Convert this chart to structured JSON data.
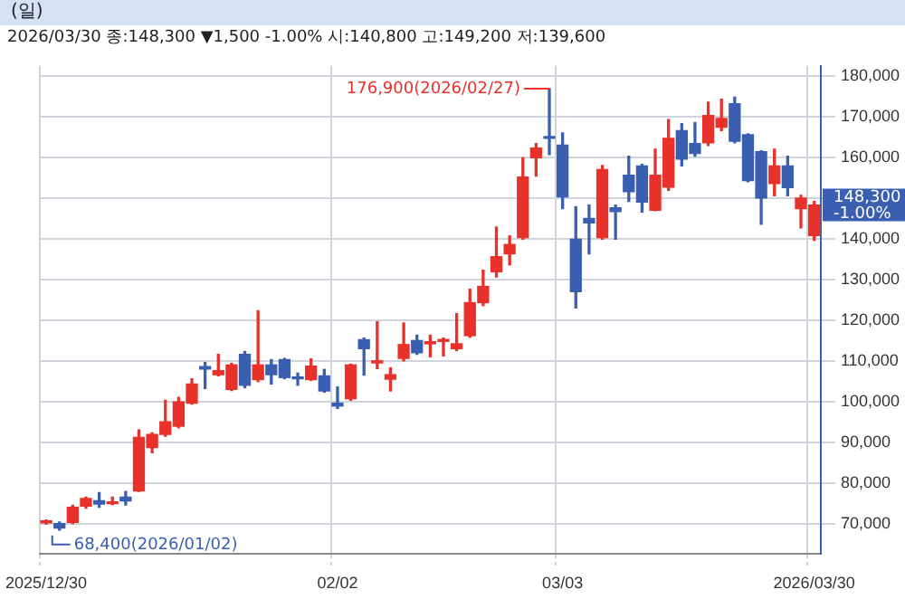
{
  "chart_data": {
    "type": "candlestick",
    "title": "(일)",
    "subtitle": "2026/03/30 종:148,300 ▼1,500 -1.00% 시:140,800 고:149,200 저:139,600",
    "categories": [
      "2025/12/30",
      null,
      null,
      null,
      null,
      null,
      null,
      null,
      null,
      null,
      null,
      null,
      null,
      null,
      null,
      null,
      null,
      null,
      null,
      null,
      null,
      null,
      "02/02",
      null,
      null,
      null,
      null,
      null,
      null,
      null,
      null,
      null,
      null,
      null,
      null,
      null,
      null,
      null,
      null,
      "03/03",
      null,
      null,
      null,
      null,
      null,
      null,
      null,
      null,
      null,
      null,
      null,
      null,
      null,
      null,
      null,
      null,
      null,
      null,
      "2026/03/30"
    ],
    "ohlc": [
      [
        70200,
        70900,
        69900,
        70500
      ],
      [
        70000,
        70400,
        68400,
        68900
      ],
      [
        70300,
        74500,
        70000,
        74000
      ],
      [
        74300,
        76500,
        73800,
        76200
      ],
      [
        75600,
        77600,
        74000,
        74800
      ],
      [
        74900,
        76500,
        74700,
        75300
      ],
      [
        76500,
        77900,
        74600,
        75600
      ],
      [
        78000,
        93000,
        77900,
        91200
      ],
      [
        88700,
        92300,
        87400,
        91900
      ],
      [
        91900,
        100300,
        91500,
        95000
      ],
      [
        93900,
        101000,
        93600,
        99900
      ],
      [
        99600,
        105600,
        99400,
        104300
      ],
      [
        108600,
        109600,
        103200,
        108000
      ],
      [
        106600,
        111600,
        106300,
        107600
      ],
      [
        103000,
        109400,
        102700,
        109000
      ],
      [
        111600,
        112300,
        103400,
        104000
      ],
      [
        105400,
        122300,
        104900,
        109000
      ],
      [
        109000,
        110300,
        104300,
        106600
      ],
      [
        110300,
        110600,
        105600,
        105900
      ],
      [
        105800,
        107000,
        104000,
        105600
      ],
      [
        105400,
        110500,
        105200,
        108700
      ],
      [
        106300,
        107900,
        102300,
        102600
      ],
      [
        99600,
        103600,
        98300,
        98900
      ],
      [
        100700,
        109200,
        100300,
        109000
      ],
      [
        115200,
        115600,
        106500,
        113000
      ],
      [
        109500,
        119600,
        108100,
        110000
      ],
      [
        105500,
        108300,
        102600,
        106600
      ],
      [
        110600,
        119300,
        110000,
        114000
      ],
      [
        115000,
        116300,
        111600,
        112000
      ],
      [
        114200,
        116300,
        111000,
        114700
      ],
      [
        114800,
        115600,
        111200,
        115200
      ],
      [
        113000,
        121600,
        112500,
        114200
      ],
      [
        116200,
        127600,
        115800,
        124300
      ],
      [
        124300,
        132300,
        123600,
        128300
      ],
      [
        131900,
        142900,
        130600,
        135600
      ],
      [
        136300,
        140700,
        133600,
        138600
      ],
      [
        140300,
        159900,
        139900,
        155200
      ],
      [
        159900,
        163400,
        155400,
        162300
      ],
      [
        165100,
        176900,
        160700,
        164700
      ],
      [
        163000,
        166000,
        147400,
        150300
      ],
      [
        139900,
        147900,
        123000,
        127000
      ],
      [
        145000,
        148300,
        136300,
        143900
      ],
      [
        140300,
        158000,
        139900,
        157000
      ],
      [
        147600,
        148300,
        139900,
        146700
      ],
      [
        155600,
        160300,
        149200,
        151600
      ],
      [
        157900,
        158300,
        146600,
        149000
      ],
      [
        147000,
        162000,
        146900,
        155600
      ],
      [
        152700,
        169300,
        151900,
        164700
      ],
      [
        166600,
        168300,
        157900,
        159600
      ],
      [
        163400,
        168600,
        160300,
        161000
      ],
      [
        163600,
        173600,
        162900,
        170300
      ],
      [
        167400,
        174300,
        166600,
        169600
      ],
      [
        173200,
        174800,
        163600,
        164000
      ],
      [
        165600,
        165800,
        154000,
        154300
      ],
      [
        161400,
        161600,
        143600,
        150000
      ],
      [
        153600,
        162000,
        150600,
        157900
      ],
      [
        157900,
        160300,
        150600,
        152600
      ],
      [
        147400,
        150700,
        142700,
        150000
      ],
      [
        140800,
        149200,
        139600,
        148300
      ]
    ],
    "colors": [
      "#e8312a",
      "#3a5fb0",
      "#e8312a",
      "#e8312a",
      "#3a5fb0",
      "#e8312a",
      "#3a5fb0",
      "#e8312a",
      "#e8312a",
      "#e8312a",
      "#e8312a",
      "#e8312a",
      "#3a5fb0",
      "#e8312a",
      "#e8312a",
      "#3a5fb0",
      "#e8312a",
      "#3a5fb0",
      "#3a5fb0",
      "#3a5fb0",
      "#e8312a",
      "#3a5fb0",
      "#3a5fb0",
      "#e8312a",
      "#3a5fb0",
      "#e8312a",
      "#e8312a",
      "#e8312a",
      "#3a5fb0",
      "#e8312a",
      "#e8312a",
      "#e8312a",
      "#e8312a",
      "#e8312a",
      "#e8312a",
      "#e8312a",
      "#e8312a",
      "#e8312a",
      "#3a5fb0",
      "#3a5fb0",
      "#3a5fb0",
      "#3a5fb0",
      "#e8312a",
      "#3a5fb0",
      "#3a5fb0",
      "#3a5fb0",
      "#e8312a",
      "#e8312a",
      "#3a5fb0",
      "#3a5fb0",
      "#e8312a",
      "#e8312a",
      "#3a5fb0",
      "#3a5fb0",
      "#3a5fb0",
      "#e8312a",
      "#3a5fb0",
      "#e8312a",
      "#e8312a"
    ],
    "ylim": [
      62500,
      182500
    ],
    "yticks": [
      {
        "value": 70000,
        "label": "70,000"
      },
      {
        "value": 80000,
        "label": "80,000"
      },
      {
        "value": 90000,
        "label": "90,000"
      },
      {
        "value": 100000,
        "label": "100,000"
      },
      {
        "value": 110000,
        "label": "110,000"
      },
      {
        "value": 120000,
        "label": "120,000"
      },
      {
        "value": 130000,
        "label": "130,000"
      },
      {
        "value": 140000,
        "label": "140,000"
      },
      {
        "value": 150000,
        "label": null
      },
      {
        "value": 160000,
        "label": "160,000"
      },
      {
        "value": 170000,
        "label": "170,000"
      },
      {
        "value": 180000,
        "label": "180,000"
      }
    ],
    "annotations": [
      "176,900(2026/02/27)",
      "68,400(2026/01/02)",
      "148,300 -1.00%"
    ],
    "grid": true
  }
}
